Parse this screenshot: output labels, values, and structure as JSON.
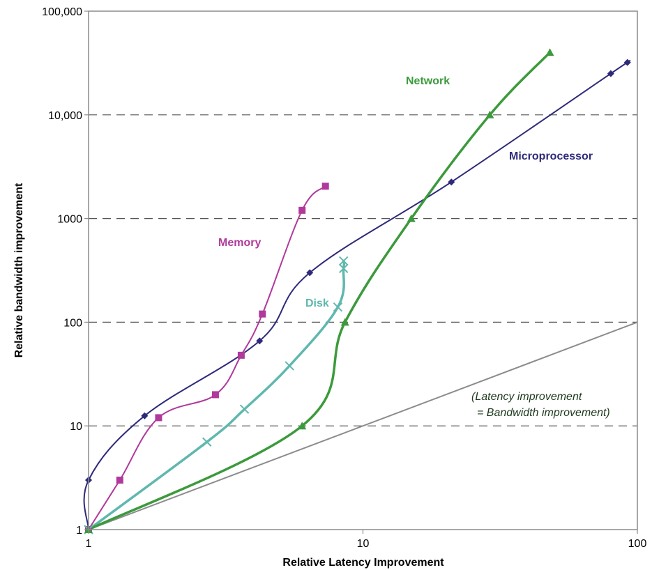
{
  "chart_data": {
    "type": "line",
    "title": "",
    "xlabel": "Relative Latency Improvement",
    "ylabel": "Relative bandwidth improvement",
    "x_scale": "log",
    "y_scale": "log",
    "xlim": [
      1,
      100
    ],
    "ylim": [
      1,
      100000
    ],
    "x_ticks": [
      "1",
      "10",
      "100"
    ],
    "y_ticks": [
      "1",
      "10",
      "100",
      "1000",
      "10,000",
      "100,000"
    ],
    "grid": "horizontal dashed at 10, 100, 1000, 10,000",
    "series": [
      {
        "name": "Microprocessor",
        "color": "#2e2a7a",
        "marker": "diamond",
        "points": [
          [
            1,
            1
          ],
          [
            1,
            3
          ],
          [
            1.6,
            12.5
          ],
          [
            4.2,
            66
          ],
          [
            6.4,
            300
          ],
          [
            21,
            2250
          ],
          [
            80,
            25000
          ],
          [
            92,
            32000
          ]
        ]
      },
      {
        "name": "Memory",
        "color": "#b0399b",
        "marker": "square",
        "points": [
          [
            1,
            1
          ],
          [
            1.3,
            3
          ],
          [
            1.8,
            12
          ],
          [
            2.9,
            20
          ],
          [
            3.6,
            48
          ],
          [
            4.3,
            120
          ],
          [
            6,
            1200
          ],
          [
            7.3,
            2050
          ]
        ]
      },
      {
        "name": "Disk",
        "color": "#5fb8ad",
        "marker": "x",
        "points": [
          [
            1,
            1
          ],
          [
            2.7,
            7
          ],
          [
            3.7,
            14.5
          ],
          [
            5.4,
            38
          ],
          [
            8.1,
            140
          ],
          [
            8.5,
            330
          ],
          [
            8.5,
            390
          ]
        ]
      },
      {
        "name": "Network",
        "color": "#3c9a3c",
        "marker": "triangle",
        "points": [
          [
            1,
            1
          ],
          [
            6,
            10
          ],
          [
            8.6,
            100
          ],
          [
            15,
            1000
          ],
          [
            29,
            10000
          ],
          [
            48,
            40000
          ]
        ]
      },
      {
        "name": "",
        "color": "#8c8c8c",
        "marker": "none",
        "points": [
          [
            1,
            1
          ],
          [
            100,
            100
          ]
        ]
      }
    ],
    "annotation": {
      "line1": "(Latency improvement",
      "line2": "= Bandwidth improvement)"
    }
  }
}
